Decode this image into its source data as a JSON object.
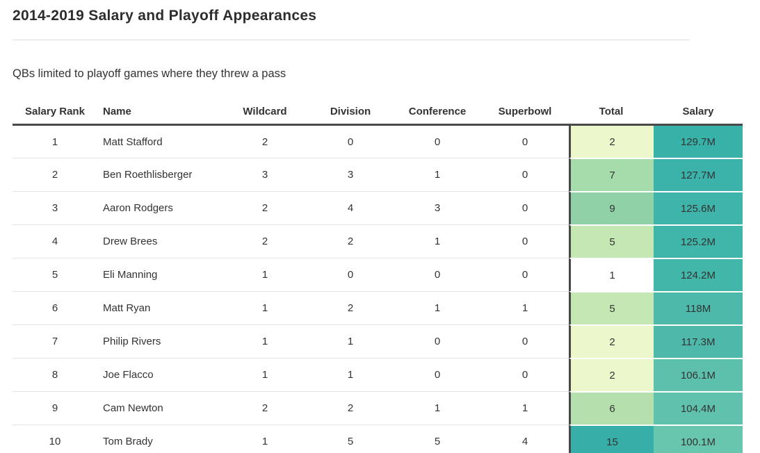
{
  "chart_data": {
    "type": "table",
    "title": "2014-2019 Salary and Playoff Appearances",
    "subtitle": "QBs limited to playoff games where they threw a pass",
    "columns": [
      "Salary Rank",
      "Name",
      "Wildcard",
      "Division",
      "Conference",
      "Superbowl",
      "Total",
      "Salary"
    ],
    "heatmap_note_colors": {
      "total_scale_low": "#ffffff",
      "total_scale_mid": "#a6dbab",
      "total_scale_high": "#37aea7",
      "salary_scale_high": "#38b2a9",
      "salary_scale_low": "#68c5ae",
      "header_border": "#484848",
      "row_divider": "#e3e3e3"
    },
    "rows": [
      {
        "rank": "1",
        "name": "Matt Stafford",
        "wildcard": "2",
        "division": "0",
        "conference": "0",
        "superbowl": "0",
        "total": "2",
        "salary": "129.7M",
        "total_bg": "#edf7cc",
        "salary_bg": "#38b2a9"
      },
      {
        "rank": "2",
        "name": "Ben Roethlisberger",
        "wildcard": "3",
        "division": "3",
        "conference": "1",
        "superbowl": "0",
        "total": "7",
        "salary": "127.7M",
        "total_bg": "#a6dbab",
        "salary_bg": "#3bb3aa"
      },
      {
        "rank": "3",
        "name": "Aaron Rodgers",
        "wildcard": "2",
        "division": "4",
        "conference": "3",
        "superbowl": "0",
        "total": "9",
        "salary": "125.6M",
        "total_bg": "#90d1a7",
        "salary_bg": "#3fb4aa"
      },
      {
        "rank": "4",
        "name": "Drew Brees",
        "wildcard": "2",
        "division": "2",
        "conference": "1",
        "superbowl": "0",
        "total": "5",
        "salary": "125.2M",
        "total_bg": "#c4e7b3",
        "salary_bg": "#40b5aa"
      },
      {
        "rank": "5",
        "name": "Eli Manning",
        "wildcard": "1",
        "division": "0",
        "conference": "0",
        "superbowl": "0",
        "total": "1",
        "salary": "124.2M",
        "total_bg": "#ffffff",
        "salary_bg": "#43b6aa"
      },
      {
        "rank": "6",
        "name": "Matt Ryan",
        "wildcard": "1",
        "division": "2",
        "conference": "1",
        "superbowl": "1",
        "total": "5",
        "salary": "118M",
        "total_bg": "#c4e7b3",
        "salary_bg": "#4cb9ab"
      },
      {
        "rank": "7",
        "name": "Philip Rivers",
        "wildcard": "1",
        "division": "1",
        "conference": "0",
        "superbowl": "0",
        "total": "2",
        "salary": "117.3M",
        "total_bg": "#edf7cc",
        "salary_bg": "#4eb9ab"
      },
      {
        "rank": "8",
        "name": "Joe Flacco",
        "wildcard": "1",
        "division": "1",
        "conference": "0",
        "superbowl": "0",
        "total": "2",
        "salary": "106.1M",
        "total_bg": "#edf7cc",
        "salary_bg": "#5dc0ad"
      },
      {
        "rank": "9",
        "name": "Cam Newton",
        "wildcard": "2",
        "division": "2",
        "conference": "1",
        "superbowl": "1",
        "total": "6",
        "salary": "104.4M",
        "total_bg": "#b5e0ad",
        "salary_bg": "#60c1ad"
      },
      {
        "rank": "10",
        "name": "Tom Brady",
        "wildcard": "1",
        "division": "5",
        "conference": "5",
        "superbowl": "4",
        "total": "15",
        "salary": "100.1M",
        "total_bg": "#37aea7",
        "salary_bg": "#68c5ae"
      }
    ]
  }
}
